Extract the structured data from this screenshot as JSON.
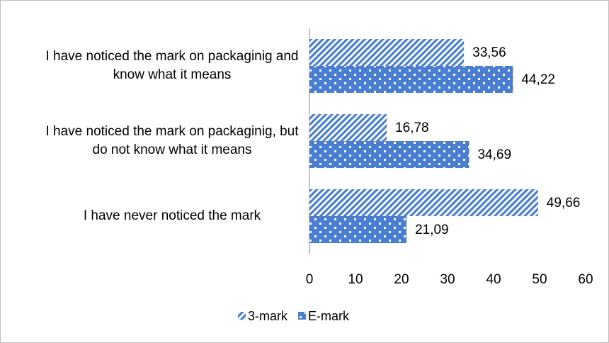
{
  "chart_data": {
    "type": "hbar",
    "categories": [
      "I have noticed the mark on packaginig and know what it means",
      "I have noticed the mark on packaginig, but do not know what it means",
      "I have never noticed the mark"
    ],
    "series": [
      {
        "name": "3-mark",
        "color": "#4a7ed2",
        "pattern": "diagonal",
        "values": [
          33.56,
          16.78,
          49.66
        ],
        "value_labels": [
          "33,56",
          "16,78",
          "49,66"
        ]
      },
      {
        "name": "E-mark",
        "color": "#4a7ed2",
        "pattern": "dots",
        "values": [
          44.22,
          34.69,
          21.09
        ],
        "value_labels": [
          "44,22",
          "34,69",
          "21,09"
        ]
      }
    ],
    "xlim": [
      0,
      60
    ],
    "xticks": [
      0,
      10,
      20,
      30,
      40,
      50,
      60
    ],
    "grid": false,
    "legend": "bottom"
  }
}
